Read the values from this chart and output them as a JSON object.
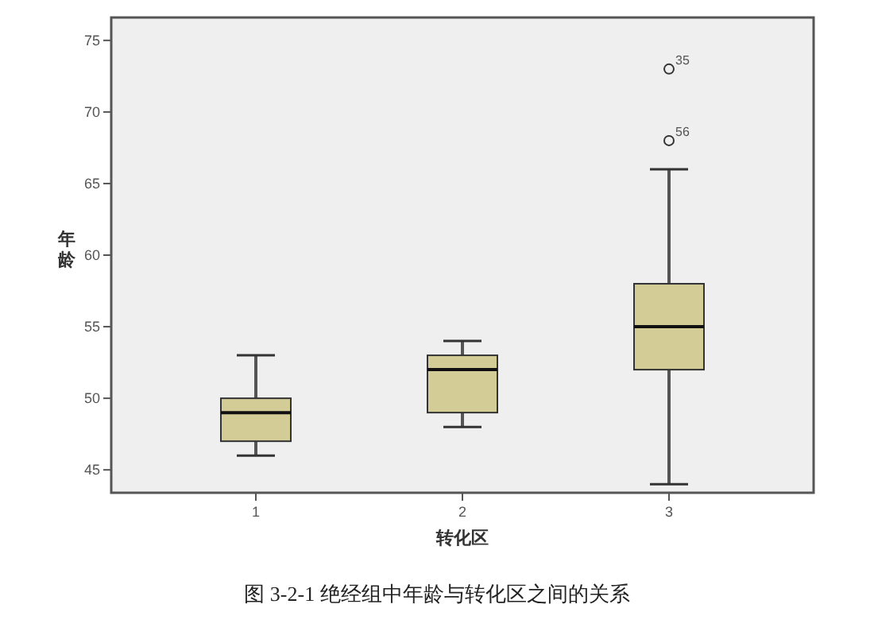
{
  "chart_data": {
    "type": "box",
    "xlabel": "转化区",
    "ylabel": "年龄",
    "categories": [
      "1",
      "2",
      "3"
    ],
    "boxes": [
      {
        "low": 46,
        "q1": 47,
        "median": 49,
        "q3": 50,
        "high": 53
      },
      {
        "low": 48,
        "q1": 49,
        "median": 52,
        "q3": 53,
        "high": 54
      },
      {
        "low": 44,
        "q1": 52,
        "median": 55,
        "q3": 58,
        "high": 66,
        "outliers": [
          73,
          68
        ]
      }
    ],
    "color": "#d4cc97",
    "ylim": [
      43.4,
      76.6
    ],
    "yticks": [
      45,
      50,
      55,
      60,
      65,
      70,
      75
    ],
    "grid": false,
    "annotations": [
      "35",
      "56",
      "图 3-2-1  绝经组中年龄与转化区之间的关系"
    ]
  }
}
